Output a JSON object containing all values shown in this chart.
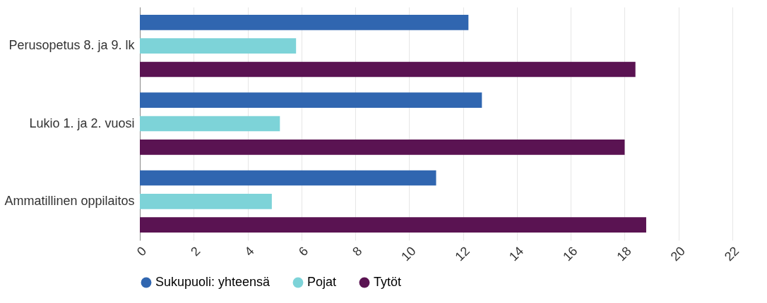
{
  "chart_data": {
    "type": "bar",
    "orientation": "horizontal",
    "categories": [
      "Perusopetus 8. ja 9. lk",
      "Lukio 1. ja 2. vuosi",
      "Ammatillinen oppilaitos"
    ],
    "series": [
      {
        "name": "Sukupuoli: yhteensä",
        "color": "#3066b0",
        "values": [
          12.2,
          12.7,
          11.0
        ]
      },
      {
        "name": "Pojat",
        "color": "#7dd3d8",
        "values": [
          5.8,
          5.2,
          4.9
        ]
      },
      {
        "name": "Tytöt",
        "color": "#5a1352",
        "values": [
          18.4,
          18.0,
          18.8
        ]
      }
    ],
    "xlim": [
      0,
      22
    ],
    "xticks": [
      0,
      2,
      4,
      6,
      8,
      10,
      12,
      14,
      16,
      18,
      20,
      22
    ],
    "grid": "x",
    "legend": "bottom left"
  }
}
